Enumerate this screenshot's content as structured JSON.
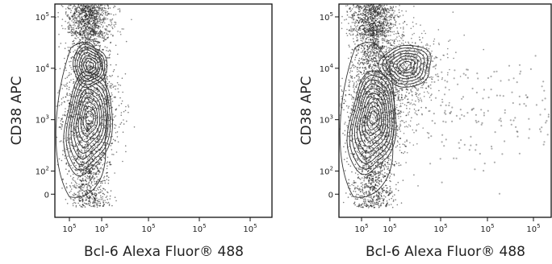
{
  "chart_data": [
    {
      "type": "scatter",
      "subtype": "flow-cytometry-contour",
      "xlabel": "Bcl-6 Alexa Fluor® 488",
      "ylabel": "CD38 APC",
      "x_ticks": [
        {
          "base": "10",
          "exp": "5"
        },
        {
          "base": "10",
          "exp": "5"
        },
        {
          "base": "10",
          "exp": "5"
        },
        {
          "base": "10",
          "exp": "5"
        },
        {
          "base": "10",
          "exp": "5"
        }
      ],
      "y_ticks": [
        {
          "base": "10",
          "exp": "5",
          "value": 5
        },
        {
          "base": "10",
          "exp": "4",
          "value": 4
        },
        {
          "base": "10",
          "exp": "3",
          "value": 3
        },
        {
          "base": "10",
          "exp": "2",
          "value": 2
        },
        {
          "base": "",
          "exp": "",
          "label": "0",
          "value": 1.55
        }
      ],
      "ylim": [
        1.1,
        5.25
      ],
      "y_scale": "log",
      "populations": [
        {
          "cx": 0.6,
          "cy": 4.05,
          "level": "major"
        },
        {
          "cx": 0.6,
          "cy": 3.05,
          "level": "major"
        }
      ],
      "scatter_extent": "negative for Bcl-6"
    },
    {
      "type": "scatter",
      "subtype": "flow-cytometry-contour",
      "xlabel": "Bcl-6 Alexa Fluor® 488",
      "ylabel": "CD38 APC",
      "x_ticks": [
        {
          "base": "10",
          "exp": "5"
        },
        {
          "base": "10",
          "exp": "5"
        },
        {
          "base": "10",
          "exp": "5"
        },
        {
          "base": "10",
          "exp": "5"
        },
        {
          "base": "10",
          "exp": "5"
        }
      ],
      "y_ticks": [
        {
          "base": "10",
          "exp": "5",
          "value": 5
        },
        {
          "base": "10",
          "exp": "4",
          "value": 4
        },
        {
          "base": "10",
          "exp": "3",
          "value": 3
        },
        {
          "base": "10",
          "exp": "2",
          "value": 2
        },
        {
          "base": "",
          "exp": "",
          "label": "0",
          "value": 1.55
        }
      ],
      "ylim": [
        1.1,
        5.25
      ],
      "y_scale": "log",
      "populations": [
        {
          "cx": 0.6,
          "cy": 3.05,
          "level": "major"
        },
        {
          "cx": 1.5,
          "cy": 4.05,
          "level": "major"
        }
      ],
      "scatter_extent": "Bcl-6 positive tail"
    }
  ]
}
